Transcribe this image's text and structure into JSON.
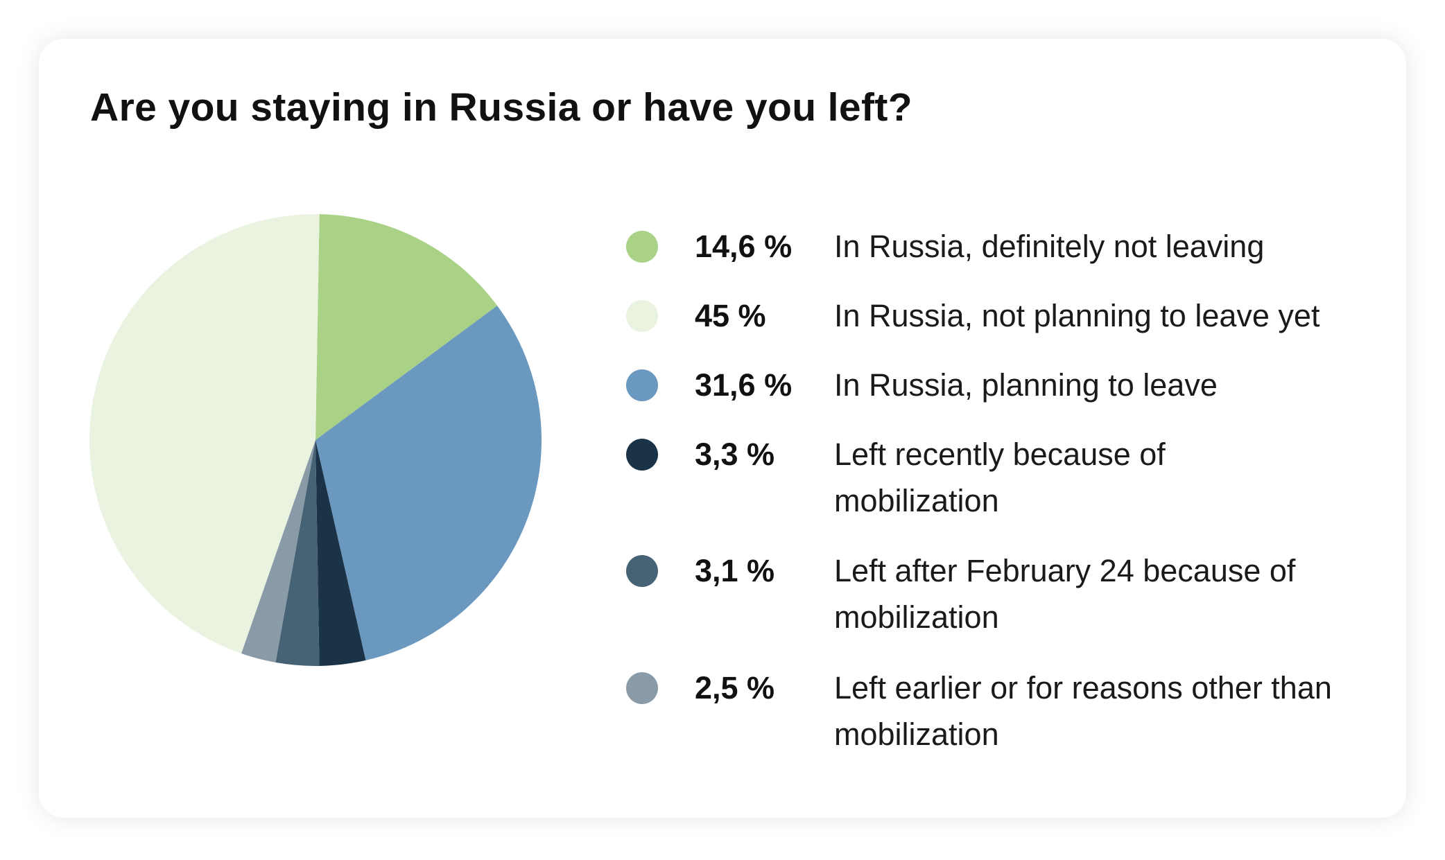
{
  "title": "Are you staying in Russia or have you left?",
  "chart_data": {
    "type": "pie",
    "title": "Are you staying in Russia or have you left?",
    "start_angle_deg": 1,
    "direction": "clockwise",
    "slices": [
      {
        "value": 14.6,
        "pct_label": "14,6 %",
        "label": "In Russia, definitely not leaving",
        "color": "#aad286"
      },
      {
        "value": 31.6,
        "pct_label": "31,6 %",
        "label": "In Russia, planning to leave",
        "color": "#6b98bf"
      },
      {
        "value": 3.3,
        "pct_label": "3,3 %",
        "label": "Left recently because of mobilization",
        "color": "#1a3347"
      },
      {
        "value": 3.1,
        "pct_label": "3,1 %",
        "label": "Left after February 24 because of mobilization",
        "color": "#466275"
      },
      {
        "value": 2.5,
        "pct_label": "2,5 %",
        "label": "Left earlier or for reasons other than mobilization",
        "color": "#8a9ba8"
      },
      {
        "value": 45,
        "pct_label": "45 %",
        "label": "In Russia, not planning to leave yet",
        "color": "#eaf3e0"
      }
    ],
    "legend": [
      {
        "pct_label": "14,6 %",
        "label": "In Russia, definitely not leaving",
        "color": "#aad286"
      },
      {
        "pct_label": "45 %",
        "label": "In Russia, not planning to leave yet",
        "color": "#eaf3e0"
      },
      {
        "pct_label": "31,6 %",
        "label": "In Russia, planning to leave",
        "color": "#6b98bf"
      },
      {
        "pct_label": "3,3 %",
        "label": "Left recently because of mobilization",
        "color": "#1a3347"
      },
      {
        "pct_label": "3,1 %",
        "label": "Left after February 24 because of mobilization",
        "color": "#466275"
      },
      {
        "pct_label": "2,5 %",
        "label": "Left earlier or for reasons other than mobilization",
        "color": "#8a9ba8"
      }
    ],
    "legend_placement": "right"
  }
}
